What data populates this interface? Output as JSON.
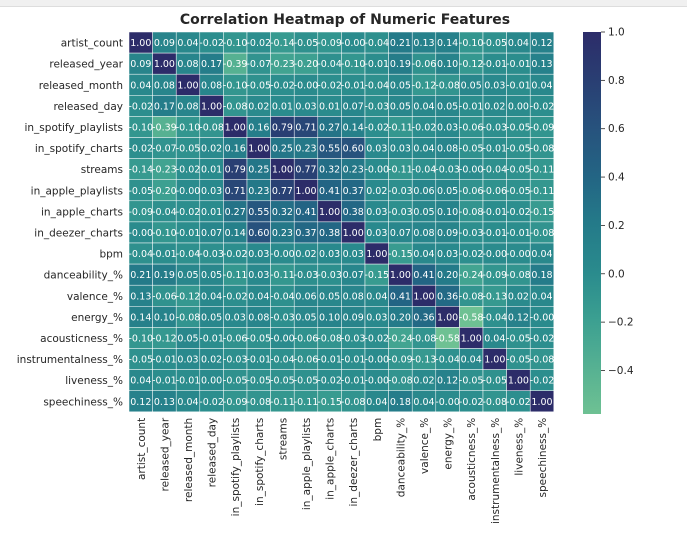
{
  "chart_data": {
    "type": "heatmap",
    "title": "Correlation Heatmap of Numeric Features",
    "xlabel": "",
    "ylabel": "",
    "colormap": "crest",
    "vmin": -0.58,
    "vmax": 1.0,
    "colorbar_ticks": [
      "1.0",
      "0.8",
      "0.6",
      "0.4",
      "0.2",
      "0.0",
      "−0.2",
      "−0.4"
    ],
    "labels": [
      "artist_count",
      "released_year",
      "released_month",
      "released_day",
      "in_spotify_playlists",
      "in_spotify_charts",
      "streams",
      "in_apple_playlists",
      "in_apple_charts",
      "in_deezer_charts",
      "bpm",
      "danceability_%",
      "valence_%",
      "energy_%",
      "acousticness_%",
      "instrumentalness_%",
      "liveness_%",
      "speechiness_%"
    ],
    "annotations": [
      [
        "1.00",
        "0.09",
        "0.04",
        "-0.02",
        "-0.10",
        "-0.02",
        "-0.14",
        "-0.05",
        "-0.09",
        "-0.00",
        "-0.04",
        "0.21",
        "0.13",
        "0.14",
        "-0.10",
        "-0.05",
        "0.04",
        "0.12"
      ],
      [
        "0.09",
        "1.00",
        "0.08",
        "0.17",
        "-0.39",
        "-0.07",
        "-0.23",
        "-0.20",
        "-0.04",
        "-0.10",
        "-0.01",
        "0.19",
        "-0.06",
        "0.10",
        "-0.12",
        "-0.01",
        "-0.01",
        "0.13"
      ],
      [
        "0.04",
        "0.08",
        "1.00",
        "0.08",
        "-0.10",
        "-0.05",
        "-0.02",
        "-0.00",
        "-0.02",
        "-0.01",
        "-0.04",
        "0.05",
        "-0.12",
        "-0.08",
        "0.05",
        "0.03",
        "-0.01",
        "0.04"
      ],
      [
        "-0.02",
        "0.17",
        "0.08",
        "1.00",
        "-0.08",
        "0.02",
        "0.01",
        "0.03",
        "0.01",
        "0.07",
        "-0.03",
        "0.05",
        "0.04",
        "0.05",
        "-0.01",
        "0.02",
        "0.00",
        "-0.02"
      ],
      [
        "-0.10",
        "-0.39",
        "-0.10",
        "-0.08",
        "1.00",
        "0.16",
        "0.79",
        "0.71",
        "0.27",
        "0.14",
        "-0.02",
        "-0.11",
        "-0.02",
        "0.03",
        "-0.06",
        "-0.03",
        "-0.05",
        "-0.09"
      ],
      [
        "-0.02",
        "-0.07",
        "-0.05",
        "0.02",
        "0.16",
        "1.00",
        "0.25",
        "0.23",
        "0.55",
        "0.60",
        "0.03",
        "0.03",
        "0.04",
        "0.08",
        "-0.05",
        "-0.01",
        "-0.05",
        "-0.08"
      ],
      [
        "-0.14",
        "-0.23",
        "-0.02",
        "0.01",
        "0.79",
        "0.25",
        "1.00",
        "0.77",
        "0.32",
        "0.23",
        "-0.00",
        "-0.11",
        "-0.04",
        "-0.03",
        "-0.00",
        "-0.04",
        "-0.05",
        "-0.11"
      ],
      [
        "-0.05",
        "-0.20",
        "-0.00",
        "0.03",
        "0.71",
        "0.23",
        "0.77",
        "1.00",
        "0.41",
        "0.37",
        "0.02",
        "-0.03",
        "0.06",
        "0.05",
        "-0.06",
        "-0.06",
        "-0.05",
        "-0.11"
      ],
      [
        "-0.09",
        "-0.04",
        "-0.02",
        "0.01",
        "0.27",
        "0.55",
        "0.32",
        "0.41",
        "1.00",
        "0.38",
        "0.03",
        "-0.03",
        "0.05",
        "0.10",
        "-0.08",
        "-0.01",
        "-0.02",
        "-0.15"
      ],
      [
        "-0.00",
        "-0.10",
        "-0.01",
        "0.07",
        "0.14",
        "0.60",
        "0.23",
        "0.37",
        "0.38",
        "1.00",
        "0.03",
        "0.07",
        "0.08",
        "0.09",
        "-0.03",
        "-0.01",
        "-0.01",
        "-0.08"
      ],
      [
        "-0.04",
        "-0.01",
        "-0.04",
        "-0.03",
        "-0.02",
        "0.03",
        "-0.00",
        "0.02",
        "0.03",
        "0.03",
        "1.00",
        "-0.15",
        "0.04",
        "0.03",
        "-0.02",
        "-0.00",
        "-0.00",
        "0.04"
      ],
      [
        "0.21",
        "0.19",
        "0.05",
        "0.05",
        "-0.11",
        "0.03",
        "-0.11",
        "-0.03",
        "-0.03",
        "0.07",
        "-0.15",
        "1.00",
        "0.41",
        "0.20",
        "-0.24",
        "-0.09",
        "-0.08",
        "0.18"
      ],
      [
        "0.13",
        "-0.06",
        "-0.12",
        "0.04",
        "-0.02",
        "0.04",
        "-0.04",
        "0.06",
        "0.05",
        "0.08",
        "0.04",
        "0.41",
        "1.00",
        "0.36",
        "-0.08",
        "-0.13",
        "0.02",
        "0.04"
      ],
      [
        "0.14",
        "0.10",
        "-0.08",
        "0.05",
        "0.03",
        "0.08",
        "-0.03",
        "0.05",
        "0.10",
        "0.09",
        "0.03",
        "0.20",
        "0.36",
        "1.00",
        "-0.58",
        "-0.04",
        "0.12",
        "-0.00"
      ],
      [
        "-0.10",
        "-0.12",
        "0.05",
        "-0.01",
        "-0.06",
        "-0.05",
        "-0.00",
        "-0.06",
        "-0.08",
        "-0.03",
        "-0.02",
        "-0.24",
        "-0.08",
        "-0.58",
        "1.00",
        "0.04",
        "-0.05",
        "-0.02"
      ],
      [
        "-0.05",
        "-0.01",
        "0.03",
        "0.02",
        "-0.03",
        "-0.01",
        "-0.04",
        "-0.06",
        "-0.01",
        "-0.01",
        "-0.00",
        "-0.09",
        "-0.13",
        "-0.04",
        "0.04",
        "1.00",
        "-0.05",
        "-0.08"
      ],
      [
        "0.04",
        "-0.01",
        "-0.01",
        "0.00",
        "-0.05",
        "-0.05",
        "-0.05",
        "-0.05",
        "-0.02",
        "-0.01",
        "-0.00",
        "-0.08",
        "0.02",
        "0.12",
        "-0.05",
        "-0.05",
        "1.00",
        "-0.02"
      ],
      [
        "0.12",
        "0.13",
        "0.04",
        "-0.02",
        "-0.09",
        "-0.08",
        "-0.11",
        "-0.11",
        "-0.15",
        "-0.08",
        "0.04",
        "0.18",
        "0.04",
        "-0.00",
        "-0.02",
        "-0.08",
        "-0.02",
        "1.00"
      ]
    ]
  }
}
